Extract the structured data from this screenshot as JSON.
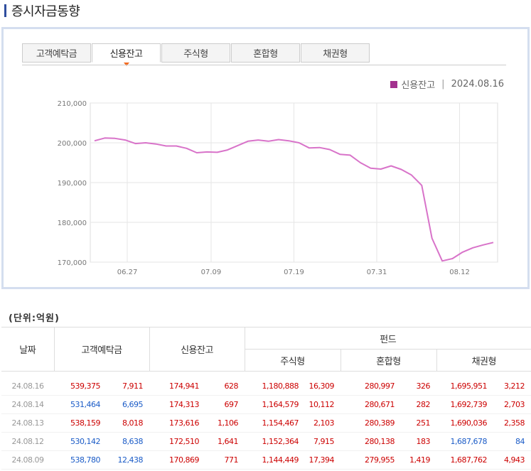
{
  "page": {
    "title": "증시자금동향"
  },
  "tabs": [
    {
      "label": "고객예탁금",
      "active": false
    },
    {
      "label": "신용잔고",
      "active": true
    },
    {
      "label": "주식형",
      "active": false
    },
    {
      "label": "혼합형",
      "active": false
    },
    {
      "label": "채권형",
      "active": false
    }
  ],
  "legend": {
    "series": "신용잔고",
    "date": "2024.08.16",
    "separator": "|"
  },
  "chart_data": {
    "type": "line",
    "series_color": "#d873c9",
    "legend_color": "#a3318f",
    "ylim": [
      170000,
      210000
    ],
    "yticks": [
      170000,
      180000,
      190000,
      200000,
      210000
    ],
    "ytick_labels": [
      "170,000",
      "180,000",
      "190,000",
      "200,000",
      "210,000"
    ],
    "xticks": [
      {
        "index": 3.2,
        "label": "06.27"
      },
      {
        "index": 11.4,
        "label": "07.09"
      },
      {
        "index": 19.5,
        "label": "07.19"
      },
      {
        "index": 27.6,
        "label": "07.31"
      },
      {
        "index": 35.7,
        "label": "08.12"
      }
    ],
    "grid": true,
    "series": [
      {
        "name": "신용잔고",
        "values": [
          200500,
          201200,
          201100,
          200700,
          199800,
          200000,
          199700,
          199200,
          199200,
          198600,
          197500,
          197700,
          197600,
          198200,
          199300,
          200400,
          200700,
          200400,
          200800,
          200500,
          200000,
          198700,
          198800,
          198300,
          197100,
          196900,
          195000,
          193600,
          193400,
          194200,
          193300,
          191900,
          189300,
          176000,
          170300,
          170900,
          172510,
          173616,
          174313,
          174941
        ]
      }
    ]
  },
  "table": {
    "unit": "(단위:억원)",
    "headers": {
      "date": "날짜",
      "deposit": "고객예탁금",
      "credit": "신용잔고",
      "fund": "펀드",
      "stock": "주식형",
      "mixed": "혼합형",
      "bond": "채권형"
    },
    "rows": [
      {
        "date": "24.08.16",
        "c": [
          {
            "v": "539,375",
            "color": "red"
          },
          {
            "v": "7,911",
            "color": "red"
          },
          {
            "v": "174,941",
            "color": "red"
          },
          {
            "v": "628",
            "color": "red"
          },
          {
            "v": "1,180,888",
            "color": "red"
          },
          {
            "v": "16,309",
            "color": "red"
          },
          {
            "v": "280,997",
            "color": "red"
          },
          {
            "v": "326",
            "color": "red"
          },
          {
            "v": "1,695,951",
            "color": "red"
          },
          {
            "v": "3,212",
            "color": "red"
          }
        ]
      },
      {
        "date": "24.08.14",
        "c": [
          {
            "v": "531,464",
            "color": "blue"
          },
          {
            "v": "6,695",
            "color": "blue"
          },
          {
            "v": "174,313",
            "color": "red"
          },
          {
            "v": "697",
            "color": "red"
          },
          {
            "v": "1,164,579",
            "color": "red"
          },
          {
            "v": "10,112",
            "color": "red"
          },
          {
            "v": "280,671",
            "color": "red"
          },
          {
            "v": "282",
            "color": "red"
          },
          {
            "v": "1,692,739",
            "color": "red"
          },
          {
            "v": "2,703",
            "color": "red"
          }
        ]
      },
      {
        "date": "24.08.13",
        "c": [
          {
            "v": "538,159",
            "color": "red"
          },
          {
            "v": "8,018",
            "color": "red"
          },
          {
            "v": "173,616",
            "color": "red"
          },
          {
            "v": "1,106",
            "color": "red"
          },
          {
            "v": "1,154,467",
            "color": "red"
          },
          {
            "v": "2,103",
            "color": "red"
          },
          {
            "v": "280,389",
            "color": "red"
          },
          {
            "v": "251",
            "color": "red"
          },
          {
            "v": "1,690,036",
            "color": "red"
          },
          {
            "v": "2,358",
            "color": "red"
          }
        ]
      },
      {
        "date": "24.08.12",
        "c": [
          {
            "v": "530,142",
            "color": "blue"
          },
          {
            "v": "8,638",
            "color": "blue"
          },
          {
            "v": "172,510",
            "color": "red"
          },
          {
            "v": "1,641",
            "color": "red"
          },
          {
            "v": "1,152,364",
            "color": "red"
          },
          {
            "v": "7,915",
            "color": "red"
          },
          {
            "v": "280,138",
            "color": "red"
          },
          {
            "v": "183",
            "color": "red"
          },
          {
            "v": "1,687,678",
            "color": "blue"
          },
          {
            "v": "84",
            "color": "blue"
          }
        ]
      },
      {
        "date": "24.08.09",
        "c": [
          {
            "v": "538,780",
            "color": "blue"
          },
          {
            "v": "12,438",
            "color": "blue"
          },
          {
            "v": "170,869",
            "color": "red"
          },
          {
            "v": "771",
            "color": "red"
          },
          {
            "v": "1,144,449",
            "color": "red"
          },
          {
            "v": "17,394",
            "color": "red"
          },
          {
            "v": "279,955",
            "color": "red"
          },
          {
            "v": "1,419",
            "color": "red"
          },
          {
            "v": "1,687,762",
            "color": "red"
          },
          {
            "v": "4,943",
            "color": "red"
          }
        ]
      }
    ]
  }
}
